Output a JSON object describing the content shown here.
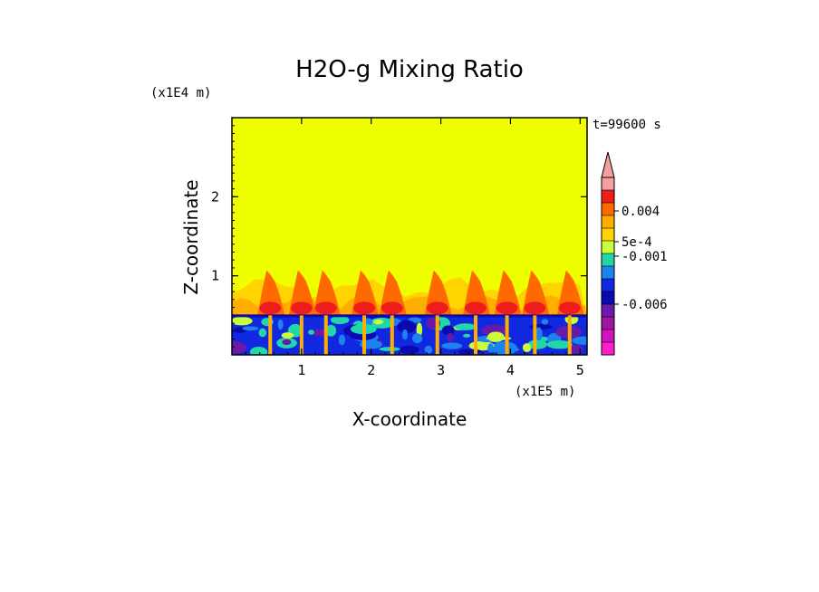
{
  "chart_data": {
    "type": "heatmap",
    "title": "H2O-g Mixing Ratio",
    "time_label": "t=99600 s",
    "xlabel": "X-coordinate",
    "ylabel": "Z-coordinate",
    "x_unit": "(x1E5 m)",
    "y_unit": "(x1E4 m)",
    "xlim": [
      0,
      5.1
    ],
    "ylim": [
      0,
      3.0
    ],
    "x_ticks": [
      "1",
      "2",
      "3",
      "4",
      "5"
    ],
    "y_ticks": [
      "1",
      "2"
    ],
    "x_tick_values": [
      1,
      2,
      3,
      4,
      5
    ],
    "y_tick_values": [
      1,
      2
    ],
    "background_value_color": "#f0ff00",
    "colorbar": {
      "tick_labels": [
        "0.004",
        "5e-4",
        "-0.001",
        "-0.006"
      ],
      "colors_top_to_bottom": [
        "#f4a0a0",
        "#ee1c1c",
        "#ff6a00",
        "#ffae00",
        "#ffd400",
        "#c9ff3a",
        "#21d6a8",
        "#1c82f0",
        "#1228e0",
        "#0a0ab0",
        "#6a1aa8",
        "#a014a0",
        "#d012c0",
        "#ff1ecb"
      ],
      "extend": "max"
    },
    "fields": {
      "moist_layer_top_z": 0.5,
      "mixed_layer_top_z": 1.0,
      "plumes_x": [
        0.55,
        1.0,
        1.35,
        1.9,
        2.3,
        2.95,
        3.5,
        3.95,
        4.35,
        4.85
      ]
    }
  }
}
